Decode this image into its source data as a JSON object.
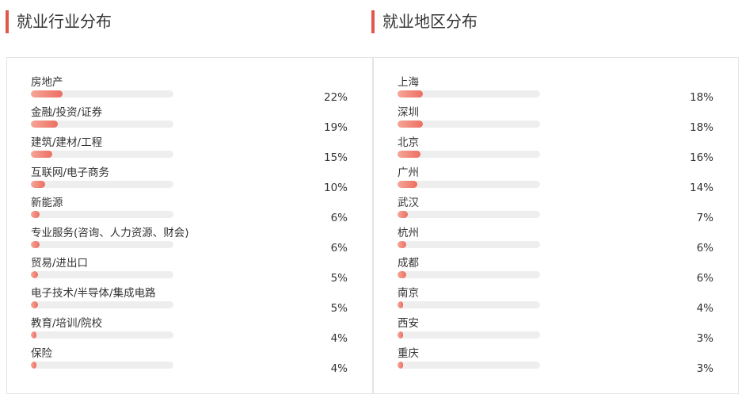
{
  "headings": {
    "industry": "就业行业分布",
    "region": "就业地区分布"
  },
  "colors": {
    "accent": "#e2574c",
    "bar_start": "#f5a698",
    "bar_end": "#ec6f62",
    "track": "#eeeeee"
  },
  "chart_data": [
    {
      "type": "bar",
      "title": "就业行业分布",
      "categories": [
        "房地产",
        "金融/投资/证券",
        "建筑/建材/工程",
        "互联网/电子商务",
        "新能源",
        "专业服务(咨询、人力资源、财会)",
        "贸易/进出口",
        "电子技术/半导体/集成电路",
        "教育/培训/院校",
        "保险"
      ],
      "values": [
        22,
        19,
        15,
        10,
        6,
        6,
        5,
        5,
        4,
        4
      ],
      "labels": [
        "22%",
        "19%",
        "15%",
        "10%",
        "6%",
        "6%",
        "5%",
        "5%",
        "4%",
        "4%"
      ],
      "unit": "%",
      "orientation": "horizontal",
      "xlim": [
        0,
        100
      ]
    },
    {
      "type": "bar",
      "title": "就业地区分布",
      "categories": [
        "上海",
        "深圳",
        "北京",
        "广州",
        "武汉",
        "杭州",
        "成都",
        "南京",
        "西安",
        "重庆"
      ],
      "values": [
        18,
        18,
        16,
        14,
        7,
        6,
        6,
        4,
        3,
        3
      ],
      "labels": [
        "18%",
        "18%",
        "16%",
        "14%",
        "7%",
        "6%",
        "6%",
        "4%",
        "3%",
        "3%"
      ],
      "unit": "%",
      "orientation": "horizontal",
      "xlim": [
        0,
        100
      ]
    }
  ]
}
